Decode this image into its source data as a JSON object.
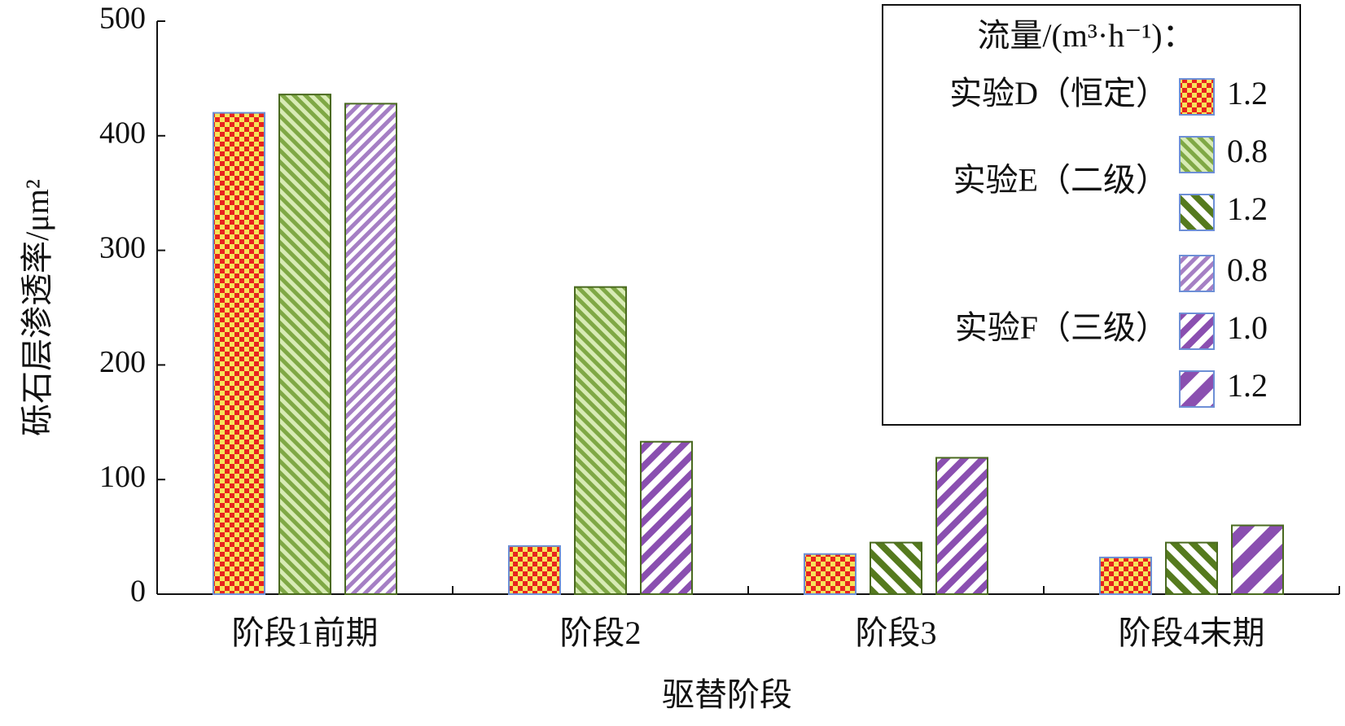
{
  "chart_data": {
    "type": "bar",
    "xlabel": "驱替阶段",
    "ylabel": "砾石层渗透率/μm²",
    "categories": [
      "阶段1前期",
      "阶段2",
      "阶段3",
      "阶段4末期"
    ],
    "ylim": [
      0,
      500
    ],
    "yticks": [
      0,
      100,
      200,
      300,
      400,
      500
    ],
    "legend_title": "流量/(m³·h⁻¹)：",
    "legend_position": "upper right",
    "series_groups": [
      {
        "name": "实验D（恒定）",
        "series": [
          {
            "name": "1.2",
            "color": "#e8231f",
            "background": "#f6e45a",
            "pattern": "checker",
            "values": [
              420,
              42,
              35,
              32
            ]
          }
        ]
      },
      {
        "name": "实验E（二级）",
        "series": [
          {
            "name": "0.8",
            "color": "#7fa845",
            "background": "#d8ebb5",
            "pattern": "fine-stripes-down",
            "values": [
              436,
              268,
              null,
              null
            ]
          },
          {
            "name": "1.2",
            "color": "#557a1e",
            "background": "#ffffff",
            "pattern": "stripes-down",
            "values": [
              null,
              null,
              45,
              45
            ]
          }
        ]
      },
      {
        "name": "实验F（三级）",
        "series": [
          {
            "name": "0.8",
            "color": "#a57fc4",
            "background": "#ffffff",
            "pattern": "fine-stripes-up",
            "values": [
              428,
              null,
              null,
              null
            ]
          },
          {
            "name": "1.0",
            "color": "#8a4fb0",
            "background": "#ffffff",
            "pattern": "stripes-up",
            "values": [
              null,
              133,
              119,
              null
            ]
          },
          {
            "name": "1.2",
            "color": "#8a4fb0",
            "background": "#ffffff",
            "pattern": "wide-stripes-up",
            "values": [
              null,
              null,
              null,
              60
            ]
          }
        ]
      }
    ]
  }
}
